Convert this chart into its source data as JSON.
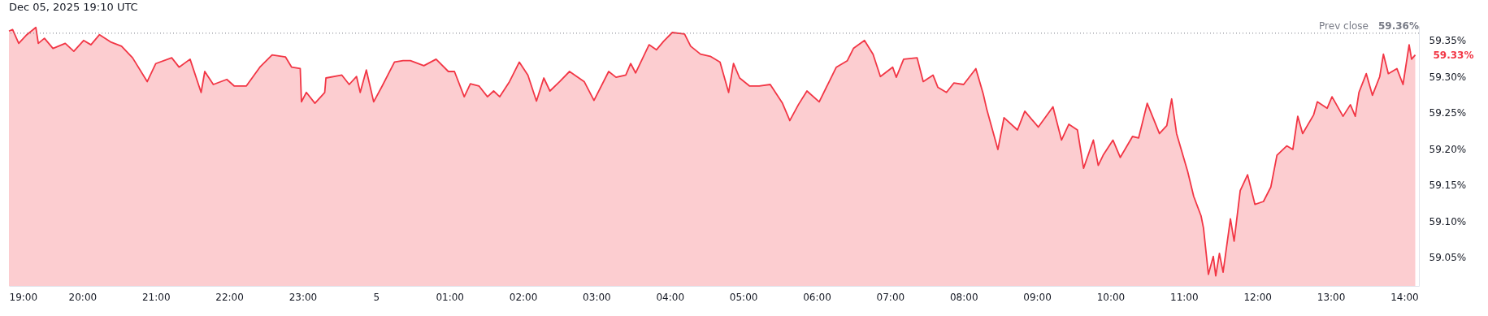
{
  "chart_data": {
    "type": "area",
    "annotations": [
      "Dec 05, 2025 19:10 UTC",
      {
        "text": "59.36%",
        "x": "2025-12-05T14:12",
        "y": 59.36
      },
      {
        "text": "59.33%",
        "x": "2025-12-05T14:09",
        "y": 59.33
      }
    ],
    "x": [
      "2025-12-04T19:00",
      "2025-12-04T19:03",
      "2025-12-04T19:08",
      "2025-12-04T19:14",
      "2025-12-04T19:22",
      "2025-12-04T19:24",
      "2025-12-04T19:29",
      "2025-12-04T19:36",
      "2025-12-04T19:46",
      "2025-12-04T19:53",
      "2025-12-04T20:01",
      "2025-12-04T20:07",
      "2025-12-04T20:14",
      "2025-12-04T20:23",
      "2025-12-04T20:32",
      "2025-12-04T20:41",
      "2025-12-04T20:53",
      "2025-12-04T21:00",
      "2025-12-04T21:13",
      "2025-12-04T21:19",
      "2025-12-04T21:28",
      "2025-12-04T21:37",
      "2025-12-04T21:40",
      "2025-12-04T21:47",
      "2025-12-04T21:58",
      "2025-12-04T22:04",
      "2025-12-04T22:14",
      "2025-12-04T22:25",
      "2025-12-04T22:35",
      "2025-12-04T22:46",
      "2025-12-04T22:51",
      "2025-12-04T22:58",
      "2025-12-04T22:59",
      "2025-12-04T23:03",
      "2025-12-04T23:10",
      "2025-12-04T23:18",
      "2025-12-04T23:19",
      "2025-12-04T23:32",
      "2025-12-04T23:38",
      "2025-12-04T23:44",
      "2025-12-04T23:47",
      "2025-12-04T23:52",
      "2025-12-04T23:58",
      "2025-12-05T00:05",
      "2025-12-05T00:15",
      "2025-12-05T00:22",
      "2025-12-05T00:28",
      "2025-12-05T00:39",
      "2025-12-05T00:49",
      "2025-12-05T00:59",
      "2025-12-05T01:04",
      "2025-12-05T01:12",
      "2025-12-05T01:17",
      "2025-12-05T01:24",
      "2025-12-05T01:31",
      "2025-12-05T01:36",
      "2025-12-05T01:41",
      "2025-12-05T01:49",
      "2025-12-05T01:57",
      "2025-12-05T02:04",
      "2025-12-05T02:11",
      "2025-12-05T02:17",
      "2025-12-05T02:22",
      "2025-12-05T02:30",
      "2025-12-05T02:38",
      "2025-12-05T02:50",
      "2025-12-05T02:58",
      "2025-12-05T03:10",
      "2025-12-05T03:16",
      "2025-12-05T03:24",
      "2025-12-05T03:28",
      "2025-12-05T03:32",
      "2025-12-05T03:43",
      "2025-12-05T03:49",
      "2025-12-05T03:55",
      "2025-12-05T04:02",
      "2025-12-05T04:12",
      "2025-12-05T04:17",
      "2025-12-05T04:25",
      "2025-12-05T04:33",
      "2025-12-05T04:41",
      "2025-12-05T04:48",
      "2025-12-05T04:52",
      "2025-12-05T04:57",
      "2025-12-05T05:05",
      "2025-12-05T05:13",
      "2025-12-05T05:22",
      "2025-12-05T05:32",
      "2025-12-05T05:38",
      "2025-12-05T05:45",
      "2025-12-05T05:52",
      "2025-12-05T06:02",
      "2025-12-05T06:16",
      "2025-12-05T06:25",
      "2025-12-05T06:30",
      "2025-12-05T06:39",
      "2025-12-05T06:46",
      "2025-12-05T06:52",
      "2025-12-05T07:02",
      "2025-12-05T07:05",
      "2025-12-05T07:11",
      "2025-12-05T07:22",
      "2025-12-05T07:27",
      "2025-12-05T07:35",
      "2025-12-05T07:39",
      "2025-12-05T07:46",
      "2025-12-05T07:52",
      "2025-12-05T08:00",
      "2025-12-05T08:10",
      "2025-12-05T08:16",
      "2025-12-05T08:19",
      "2025-12-05T08:28",
      "2025-12-05T08:33",
      "2025-12-05T08:44",
      "2025-12-05T08:50",
      "2025-12-05T09:01",
      "2025-12-05T09:13",
      "2025-12-05T09:20",
      "2025-12-05T09:26",
      "2025-12-05T09:33",
      "2025-12-05T09:38",
      "2025-12-05T09:46",
      "2025-12-05T09:50",
      "2025-12-05T09:54",
      "2025-12-05T10:02",
      "2025-12-05T10:08",
      "2025-12-05T10:18",
      "2025-12-05T10:23",
      "2025-12-05T10:30",
      "2025-12-05T10:40",
      "2025-12-05T10:46",
      "2025-12-05T10:50",
      "2025-12-05T10:54",
      "2025-12-05T11:03",
      "2025-12-05T11:08",
      "2025-12-05T11:14",
      "2025-12-05T11:16",
      "2025-12-05T11:20",
      "2025-12-05T11:24",
      "2025-12-05T11:26",
      "2025-12-05T11:29",
      "2025-12-05T11:32",
      "2025-12-05T11:38",
      "2025-12-05T11:41",
      "2025-12-05T11:46",
      "2025-12-05T11:52",
      "2025-12-05T11:58",
      "2025-12-05T12:05",
      "2025-12-05T12:11",
      "2025-12-05T12:16",
      "2025-12-05T12:24",
      "2025-12-05T12:29",
      "2025-12-05T12:33",
      "2025-12-05T12:37",
      "2025-12-05T12:46",
      "2025-12-05T12:49",
      "2025-12-05T12:57",
      "2025-12-05T13:01",
      "2025-12-05T13:10",
      "2025-12-05T13:16",
      "2025-12-05T13:20",
      "2025-12-05T13:23",
      "2025-12-05T13:29",
      "2025-12-05T13:34",
      "2025-12-05T13:40",
      "2025-12-05T13:43",
      "2025-12-05T13:47",
      "2025-12-05T13:54",
      "2025-12-05T13:59",
      "2025-12-05T14:04",
      "2025-12-05T14:06",
      "2025-12-05T14:09"
    ],
    "series": [
      {
        "color": "#f23645",
        "values": [
          59.363,
          59.365,
          59.346,
          59.357,
          59.368,
          59.346,
          59.353,
          59.339,
          59.346,
          59.335,
          59.35,
          59.344,
          59.358,
          59.348,
          59.342,
          59.326,
          59.293,
          59.318,
          59.326,
          59.313,
          59.324,
          59.278,
          59.307,
          59.289,
          59.296,
          59.287,
          59.287,
          59.313,
          59.33,
          59.327,
          59.313,
          59.311,
          59.265,
          59.278,
          59.263,
          59.278,
          59.298,
          59.302,
          59.289,
          59.3,
          59.278,
          59.309,
          59.265,
          59.287,
          59.32,
          59.322,
          59.322,
          59.315,
          59.324,
          59.307,
          59.307,
          59.272,
          59.29,
          59.287,
          59.272,
          59.28,
          59.272,
          59.293,
          59.32,
          59.302,
          59.266,
          59.298,
          59.28,
          59.293,
          59.307,
          59.293,
          59.267,
          59.307,
          59.299,
          59.302,
          59.318,
          59.305,
          59.344,
          59.337,
          59.349,
          59.361,
          59.359,
          59.342,
          59.331,
          59.328,
          59.32,
          59.278,
          59.318,
          59.298,
          59.287,
          59.287,
          59.289,
          59.263,
          59.239,
          59.261,
          59.28,
          59.265,
          59.313,
          59.322,
          59.339,
          59.35,
          59.331,
          59.3,
          59.313,
          59.299,
          59.324,
          59.326,
          59.293,
          59.302,
          59.285,
          59.278,
          59.291,
          59.289,
          59.311,
          59.276,
          59.254,
          59.199,
          59.243,
          59.226,
          59.252,
          59.23,
          59.258,
          59.212,
          59.234,
          59.226,
          59.173,
          59.212,
          59.177,
          59.191,
          59.212,
          59.188,
          59.217,
          59.215,
          59.263,
          59.221,
          59.232,
          59.269,
          59.221,
          59.169,
          59.134,
          59.107,
          59.09,
          59.026,
          59.051,
          59.024,
          59.055,
          59.029,
          59.103,
          59.072,
          59.142,
          59.164,
          59.123,
          59.127,
          59.147,
          59.191,
          59.204,
          59.199,
          59.245,
          59.221,
          59.247,
          59.265,
          59.256,
          59.272,
          59.245,
          59.261,
          59.245,
          59.278,
          59.304,
          59.274,
          59.3,
          59.331,
          59.304,
          59.311,
          59.289,
          59.344,
          59.324,
          59.33
        ]
      }
    ],
    "xlim": [
      "2025-12-04T19:00",
      "2025-12-05T14:12"
    ],
    "xticks": [
      {
        "value": "2025-12-04T19:00",
        "label": "19:00"
      },
      {
        "value": "2025-12-04T20:00",
        "label": "20:00"
      },
      {
        "value": "2025-12-04T21:00",
        "label": "21:00"
      },
      {
        "value": "2025-12-04T22:00",
        "label": "22:00"
      },
      {
        "value": "2025-12-04T23:00",
        "label": "23:00"
      },
      {
        "value": "2025-12-05T00:00",
        "label": "5"
      },
      {
        "value": "2025-12-05T01:00",
        "label": "01:00"
      },
      {
        "value": "2025-12-05T02:00",
        "label": "02:00"
      },
      {
        "value": "2025-12-05T03:00",
        "label": "03:00"
      },
      {
        "value": "2025-12-05T04:00",
        "label": "04:00"
      },
      {
        "value": "2025-12-05T05:00",
        "label": "05:00"
      },
      {
        "value": "2025-12-05T06:00",
        "label": "06:00"
      },
      {
        "value": "2025-12-05T07:00",
        "label": "07:00"
      },
      {
        "value": "2025-12-05T08:00",
        "label": "08:00"
      },
      {
        "value": "2025-12-05T09:00",
        "label": "09:00"
      },
      {
        "value": "2025-12-05T10:00",
        "label": "10:00"
      },
      {
        "value": "2025-12-05T11:00",
        "label": "11:00"
      },
      {
        "value": "2025-12-05T12:00",
        "label": "12:00"
      },
      {
        "value": "2025-12-05T13:00",
        "label": "13:00"
      },
      {
        "value": "2025-12-05T14:00",
        "label": "14:00"
      }
    ],
    "ylim": [
      59.01,
      59.37
    ],
    "yticks": [
      {
        "value": 59.05,
        "label": "59.05%"
      },
      {
        "value": 59.1,
        "label": "59.10%"
      },
      {
        "value": 59.15,
        "label": "59.15%"
      },
      {
        "value": 59.2,
        "label": "59.20%"
      },
      {
        "value": 59.25,
        "label": "59.25%"
      },
      {
        "value": 59.3,
        "label": "59.30%"
      },
      {
        "value": 59.35,
        "label": "59.35%"
      }
    ],
    "ref_lines": [
      {
        "axis": "y",
        "value": 59.36,
        "label": "Prev close",
        "color": "#787b86",
        "line_style": "dotted"
      }
    ],
    "grid": false
  }
}
